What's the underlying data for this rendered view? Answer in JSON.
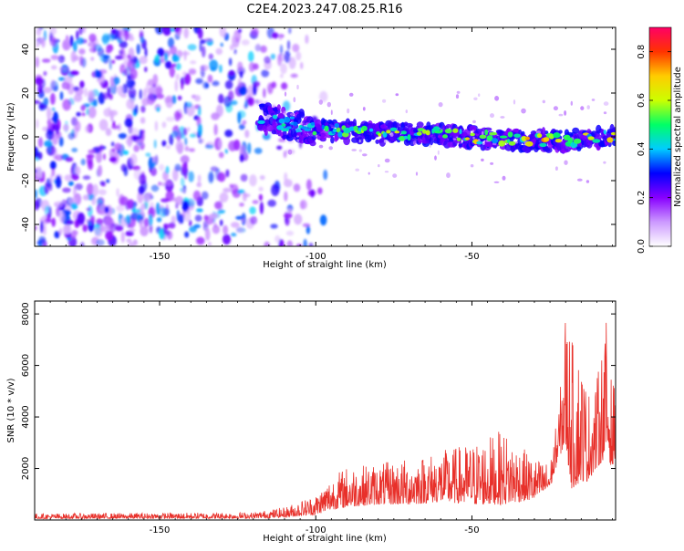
{
  "figure_title": "C2E4.2023.247.08.25.R16",
  "chart_data": [
    {
      "type": "heatmap",
      "xlabel": "Height of straight line (km)",
      "ylabel": "Frequency (Hz)",
      "xlim": [
        -190,
        -4
      ],
      "ylim": [
        -50,
        50
      ],
      "x_ticks": [
        -150,
        -100,
        -50
      ],
      "y_ticks": [
        -40,
        -20,
        0,
        20,
        40
      ],
      "colorbar": {
        "label": "Normalized spectral amplitude",
        "range": [
          0,
          0.9
        ],
        "ticks": [
          0.0,
          0.2,
          0.4,
          0.6,
          0.8
        ],
        "colors": [
          "#ffffff",
          "#cc99ff",
          "#8800ff",
          "#0000ff",
          "#00ccff",
          "#00ff66",
          "#ccff00",
          "#ffcc00",
          "#ff3300",
          "#ff0066"
        ]
      },
      "ridge": {
        "description_points_x": [
          -115,
          -100,
          -80,
          -60,
          -40,
          -20,
          -4
        ],
        "description_points_y": [
          8,
          3,
          2,
          1,
          -1,
          -2,
          1
        ]
      },
      "noise_region_x": [
        -190,
        -115
      ]
    },
    {
      "type": "line",
      "xlabel": "Height of straight line (km)",
      "ylabel": "SNR (10 * v/v)",
      "xlim": [
        -190,
        -4
      ],
      "ylim": [
        0,
        8500
      ],
      "x_ticks": [
        -150,
        -100,
        -50
      ],
      "y_ticks": [
        2000,
        4000,
        6000,
        8000
      ],
      "color": "#e8302a",
      "envelope": {
        "x": [
          -190,
          -120,
          -110,
          -100,
          -95,
          -90,
          -80,
          -70,
          -60,
          -50,
          -40,
          -30,
          -25,
          -22,
          -20,
          -18,
          -15,
          -13,
          -10,
          -7,
          -5,
          -4
        ],
        "low": [
          50,
          60,
          100,
          200,
          400,
          500,
          600,
          600,
          700,
          600,
          600,
          800,
          1200,
          2500,
          2800,
          1200,
          1500,
          1500,
          2000,
          2500,
          2000,
          2500
        ],
        "high": [
          250,
          300,
          500,
          1000,
          1700,
          2100,
          2200,
          2400,
          2700,
          3000,
          3500,
          2400,
          2200,
          4500,
          8500,
          7000,
          6500,
          5000,
          5500,
          7800,
          5000,
          6000
        ]
      }
    }
  ]
}
